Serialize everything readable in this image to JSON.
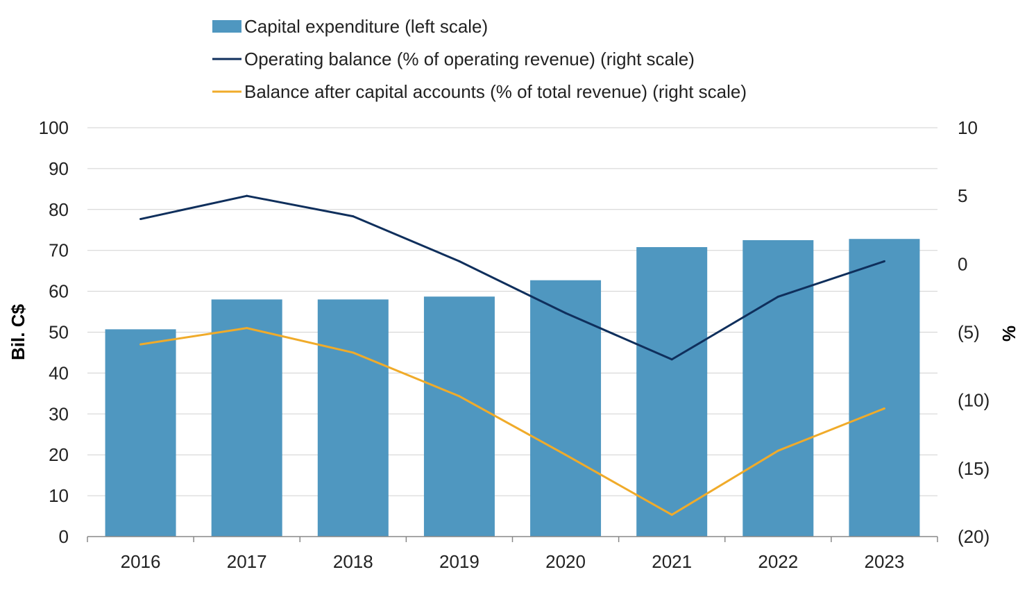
{
  "chart_data": {
    "type": "bar",
    "categories": [
      "2016",
      "2017",
      "2018",
      "2019",
      "2020",
      "2021",
      "2022",
      "2023"
    ],
    "series": [
      {
        "name": "Capital expenditure (left scale)",
        "type": "bar",
        "axis": "left",
        "color": "#4f97c0",
        "values": [
          50.7,
          58.0,
          58.0,
          58.7,
          62.7,
          70.8,
          72.5,
          72.8
        ]
      },
      {
        "name": "Operating balance (% of operating revenue) (right scale)",
        "type": "line",
        "axis": "right",
        "color": "#0f2f5c",
        "values": [
          3.3,
          5.0,
          3.5,
          0.2,
          -3.6,
          -7.0,
          -2.4,
          0.2
        ]
      },
      {
        "name": "Balance after capital accounts (% of total revenue) (right scale)",
        "type": "line",
        "axis": "right",
        "color": "#f0ab2a",
        "values": [
          -5.9,
          -4.7,
          -6.5,
          -9.7,
          -14.0,
          -18.4,
          -13.7,
          -10.6
        ]
      }
    ],
    "ylabel": "Bil. C$",
    "ylim": [
      0,
      100
    ],
    "yticks": [
      0,
      10,
      20,
      30,
      40,
      50,
      60,
      70,
      80,
      90,
      100
    ],
    "ytick_labels": [
      "0",
      "10",
      "20",
      "30",
      "40",
      "50",
      "60",
      "70",
      "80",
      "90",
      "100"
    ],
    "y2label": "%",
    "y2lim": [
      -20,
      10
    ],
    "y2ticks": [
      -20,
      -15,
      -10,
      -5,
      0,
      5,
      10
    ],
    "y2tick_labels": [
      "(20)",
      "(15)",
      "(10)",
      "(5)",
      "0",
      "5",
      "10"
    ],
    "grid": true,
    "legend_position": "top"
  }
}
